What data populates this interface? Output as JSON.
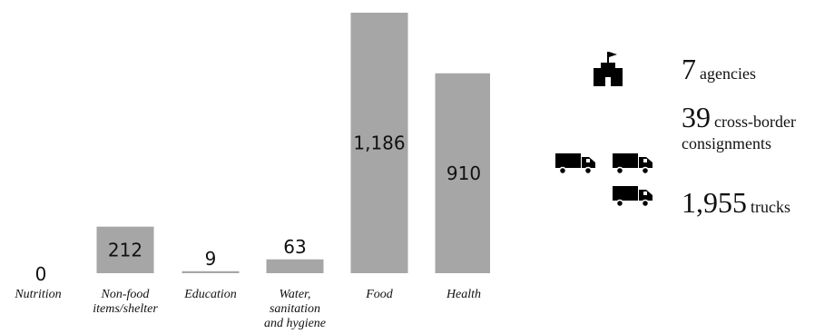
{
  "chart_data": {
    "type": "bar",
    "categories": [
      "Nutrition",
      "Non-food items/shelter",
      "Education",
      "Water, sanitation and hygiene",
      "Food",
      "Health"
    ],
    "category_lines": [
      [
        "Nutrition"
      ],
      [
        "Non-food",
        "items/shelter"
      ],
      [
        "Education"
      ],
      [
        "Water,",
        "sanitation",
        "and hygiene"
      ],
      [
        "Food"
      ],
      [
        "Health"
      ]
    ],
    "values": [
      0,
      212,
      9,
      63,
      1186,
      910
    ],
    "value_labels": [
      "0",
      "212",
      "9",
      "63",
      "1,186",
      "910"
    ],
    "bar_color": "#a6a6a6",
    "ylim": [
      0,
      1186
    ],
    "grid": false,
    "legend": "none"
  },
  "stats": {
    "agencies": {
      "number": "7",
      "label": "agencies",
      "icon": "building-flag-icon"
    },
    "consignments": {
      "number": "39",
      "label_line1": "cross-border",
      "label_line2": "consignments",
      "icon": "truck-icon"
    },
    "trucks": {
      "number": "1,955",
      "label": "trucks",
      "icon": "truck-icon"
    }
  }
}
